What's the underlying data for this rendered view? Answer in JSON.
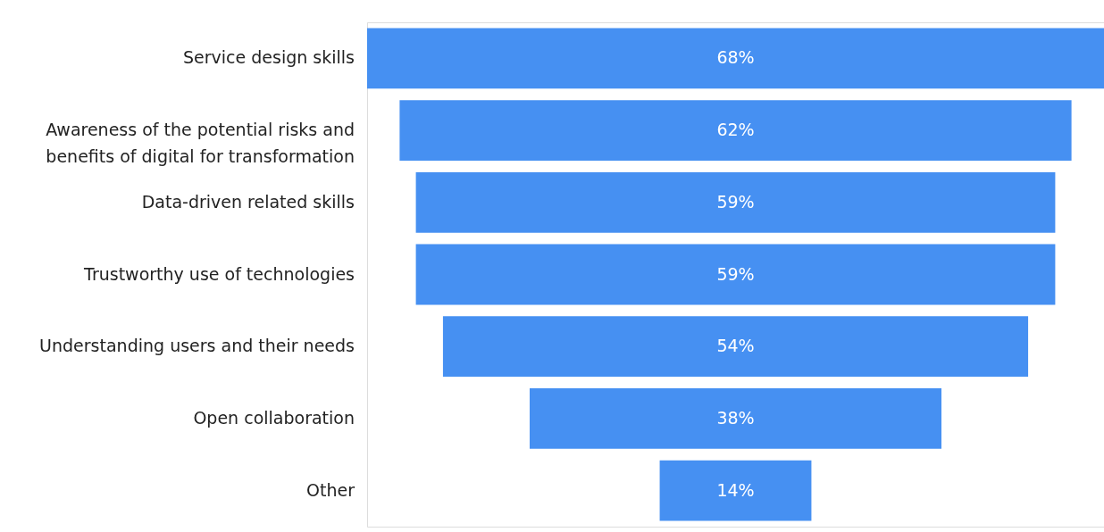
{
  "chart_data": {
    "type": "other",
    "categories": [
      "Service design skills",
      "Awareness of the potential risks and benefits of digital for transformation",
      "Data-driven related skills",
      "Trustworthy use of technologies",
      "Understanding users and their needs",
      "Open collaboration",
      "Other"
    ],
    "values": [
      68,
      62,
      59,
      59,
      54,
      38,
      14
    ],
    "value_labels": [
      "68%",
      "62%",
      "59%",
      "59%",
      "54%",
      "38%",
      "14%"
    ],
    "color": "#4690f2"
  }
}
